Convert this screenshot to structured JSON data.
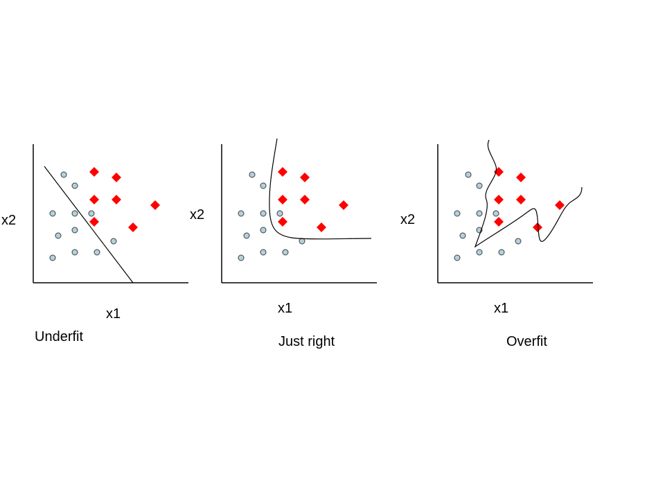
{
  "colors": {
    "axis": "#000000",
    "boundary": "#000000",
    "circle_fill": "#b8cfd5",
    "circle_stroke": "#2f3f4f",
    "diamond_fill": "#ff0000"
  },
  "panels": [
    {
      "id": "underfit",
      "caption": "Underfit",
      "x_axis_label": "x1",
      "y_axis_label": "x2",
      "boundary_type": "straight line"
    },
    {
      "id": "just-right",
      "caption": "Just right",
      "x_axis_label": "x1",
      "y_axis_label": "x2",
      "boundary_type": "smooth curve"
    },
    {
      "id": "overfit",
      "caption": "Overfit",
      "x_axis_label": "x1",
      "y_axis_label": "x2",
      "boundary_type": "wiggly curve"
    }
  ],
  "marker_legend": {
    "circle": "class A sample (circle marker)",
    "diamond": "class B sample (diamond marker)"
  }
}
